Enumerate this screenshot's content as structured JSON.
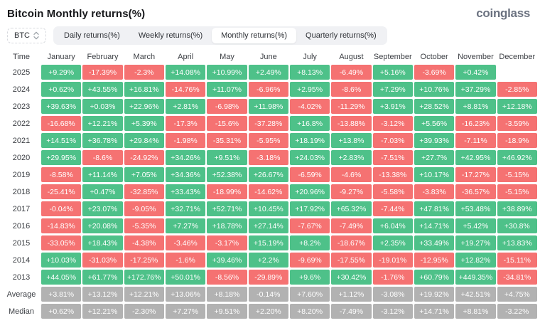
{
  "header": {
    "title": "Bitcoin Monthly returns(%)",
    "logo": "coinglass"
  },
  "controls": {
    "coin_selector": {
      "label": "BTC",
      "icon": "updown-arrows-icon"
    },
    "tabs": [
      {
        "label": "Daily returns(%)",
        "active": false
      },
      {
        "label": "Weekly returns(%)",
        "active": false
      },
      {
        "label": "Monthly returns(%)",
        "active": true
      },
      {
        "label": "Quarterly returns(%)",
        "active": false
      }
    ]
  },
  "colors": {
    "positive": "#4ec189",
    "negative": "#f57272",
    "neutral": "#b2b2b2"
  },
  "table": {
    "columns": [
      "Time",
      "January",
      "February",
      "March",
      "April",
      "May",
      "June",
      "July",
      "August",
      "September",
      "October",
      "November",
      "December"
    ],
    "rows": [
      {
        "label": "2025",
        "style": "signed",
        "values": [
          "+9.29%",
          "-17.39%",
          "-2.3%",
          "+14.08%",
          "+10.99%",
          "+2.49%",
          "+8.13%",
          "-6.49%",
          "+5.16%",
          "-3.69%",
          "+0.42%",
          ""
        ]
      },
      {
        "label": "2024",
        "style": "signed",
        "values": [
          "+0.62%",
          "+43.55%",
          "+16.81%",
          "-14.76%",
          "+11.07%",
          "-6.96%",
          "+2.95%",
          "-8.6%",
          "+7.29%",
          "+10.76%",
          "+37.29%",
          "-2.85%"
        ]
      },
      {
        "label": "2023",
        "style": "signed",
        "values": [
          "+39.63%",
          "+0.03%",
          "+22.96%",
          "+2.81%",
          "-6.98%",
          "+11.98%",
          "-4.02%",
          "-11.29%",
          "+3.91%",
          "+28.52%",
          "+8.81%",
          "+12.18%"
        ]
      },
      {
        "label": "2022",
        "style": "signed",
        "values": [
          "-16.68%",
          "+12.21%",
          "+5.39%",
          "-17.3%",
          "-15.6%",
          "-37.28%",
          "+16.8%",
          "-13.88%",
          "-3.12%",
          "+5.56%",
          "-16.23%",
          "-3.59%"
        ]
      },
      {
        "label": "2021",
        "style": "signed",
        "values": [
          "+14.51%",
          "+36.78%",
          "+29.84%",
          "-1.98%",
          "-35.31%",
          "-5.95%",
          "+18.19%",
          "+13.8%",
          "-7.03%",
          "+39.93%",
          "-7.11%",
          "-18.9%"
        ]
      },
      {
        "label": "2020",
        "style": "signed",
        "values": [
          "+29.95%",
          "-8.6%",
          "-24.92%",
          "+34.26%",
          "+9.51%",
          "-3.18%",
          "+24.03%",
          "+2.83%",
          "-7.51%",
          "+27.7%",
          "+42.95%",
          "+46.92%"
        ]
      },
      {
        "label": "2019",
        "style": "signed",
        "values": [
          "-8.58%",
          "+11.14%",
          "+7.05%",
          "+34.36%",
          "+52.38%",
          "+26.67%",
          "-6.59%",
          "-4.6%",
          "-13.38%",
          "+10.17%",
          "-17.27%",
          "-5.15%"
        ]
      },
      {
        "label": "2018",
        "style": "signed",
        "values": [
          "-25.41%",
          "+0.47%",
          "-32.85%",
          "+33.43%",
          "-18.99%",
          "-14.62%",
          "+20.96%",
          "-9.27%",
          "-5.58%",
          "-3.83%",
          "-36.57%",
          "-5.15%"
        ]
      },
      {
        "label": "2017",
        "style": "signed",
        "values": [
          "-0.04%",
          "+23.07%",
          "-9.05%",
          "+32.71%",
          "+52.71%",
          "+10.45%",
          "+17.92%",
          "+65.32%",
          "-7.44%",
          "+47.81%",
          "+53.48%",
          "+38.89%"
        ]
      },
      {
        "label": "2016",
        "style": "signed",
        "values": [
          "-14.83%",
          "+20.08%",
          "-5.35%",
          "+7.27%",
          "+18.78%",
          "+27.14%",
          "-7.67%",
          "-7.49%",
          "+6.04%",
          "+14.71%",
          "+5.42%",
          "+30.8%"
        ]
      },
      {
        "label": "2015",
        "style": "signed",
        "values": [
          "-33.05%",
          "+18.43%",
          "-4.38%",
          "-3.46%",
          "-3.17%",
          "+15.19%",
          "+8.2%",
          "-18.67%",
          "+2.35%",
          "+33.49%",
          "+19.27%",
          "+13.83%"
        ]
      },
      {
        "label": "2014",
        "style": "signed",
        "values": [
          "+10.03%",
          "-31.03%",
          "-17.25%",
          "-1.6%",
          "+39.46%",
          "+2.2%",
          "-9.69%",
          "-17.55%",
          "-19.01%",
          "-12.95%",
          "+12.82%",
          "-15.11%"
        ]
      },
      {
        "label": "2013",
        "style": "signed",
        "values": [
          "+44.05%",
          "+61.77%",
          "+172.76%",
          "+50.01%",
          "-8.56%",
          "-29.89%",
          "+9.6%",
          "+30.42%",
          "-1.76%",
          "+60.79%",
          "+449.35%",
          "-34.81%"
        ]
      },
      {
        "label": "Average",
        "style": "neutral",
        "values": [
          "+3.81%",
          "+13.12%",
          "+12.21%",
          "+13.06%",
          "+8.18%",
          "-0.14%",
          "+7.60%",
          "+1.12%",
          "-3.08%",
          "+19.92%",
          "+42.51%",
          "+4.75%"
        ]
      },
      {
        "label": "Median",
        "style": "neutral",
        "values": [
          "+0.62%",
          "+12.21%",
          "-2.30%",
          "+7.27%",
          "+9.51%",
          "+2.20%",
          "+8.20%",
          "-7.49%",
          "-3.12%",
          "+14.71%",
          "+8.81%",
          "-3.22%"
        ]
      }
    ]
  }
}
